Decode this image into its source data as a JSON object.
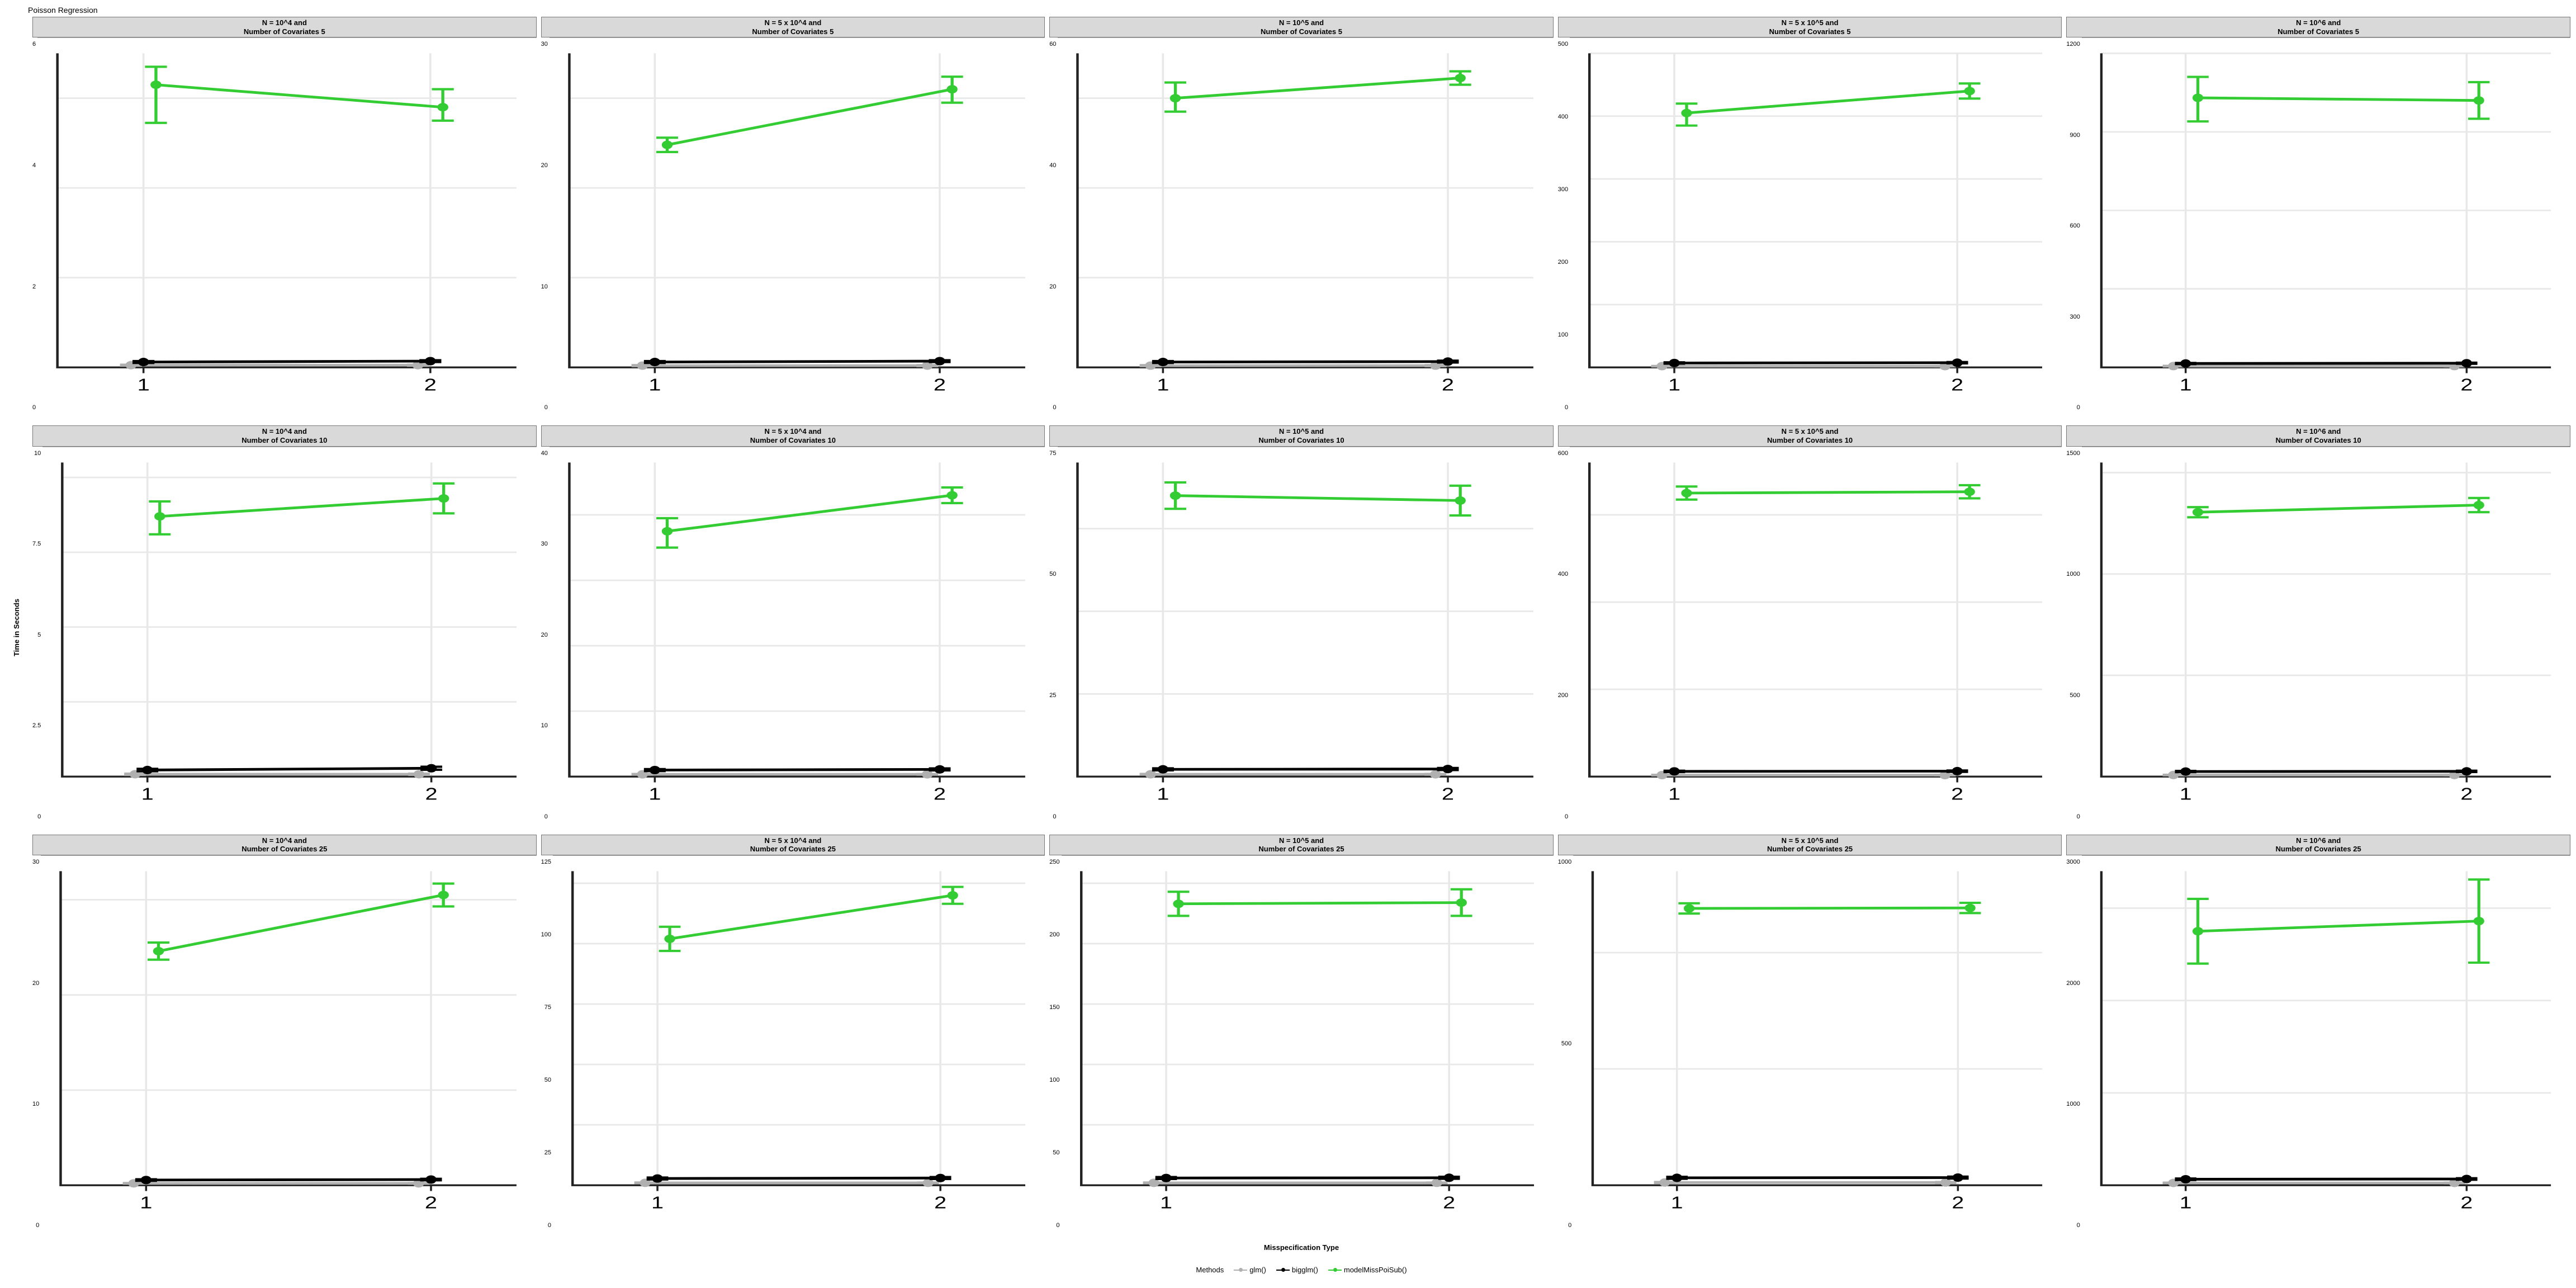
{
  "title": "Poisson Regression",
  "ylabel": "Time in Seconds",
  "xlabel": "Misspecification Type",
  "legend_label": "Methods",
  "legend_items": [
    {
      "name": "glm()",
      "color": "#b0b0b0"
    },
    {
      "name": "bigglm()",
      "color": "#000000"
    },
    {
      "name": "modelMissPoiSub()",
      "color": "#33cc33"
    }
  ],
  "colors": {
    "glm": "#b0b0b0",
    "bigglm": "#000000",
    "model": "#33cc33",
    "panel_bg": "#ffffff",
    "grid": "#e8e8e8",
    "axis": "#222222"
  },
  "x_ticks": [
    "1",
    "2"
  ],
  "panels": [
    [
      {
        "strip": "N = 10^4 and\nNumber of Covariates 5",
        "ylim": [
          0,
          7
        ],
        "ytick_step": 2,
        "glm": [
          [
            1,
            0.05,
            0.01,
            0.01
          ],
          [
            2,
            0.05,
            0.01,
            0.01
          ]
        ],
        "bigglm": [
          [
            1,
            0.12,
            0.02,
            0.02
          ],
          [
            2,
            0.14,
            0.02,
            0.02
          ]
        ],
        "model": [
          [
            1,
            6.3,
            0.85,
            0.4
          ],
          [
            2,
            5.8,
            0.3,
            0.4
          ]
        ]
      },
      {
        "strip": "N = 5 x 10^4 and\nNumber of Covariates 5",
        "ylim": [
          0,
          35
        ],
        "ytick_step": 10,
        "glm": [
          [
            1,
            0.2,
            0.05,
            0.05
          ],
          [
            2,
            0.2,
            0.05,
            0.05
          ]
        ],
        "bigglm": [
          [
            1,
            0.6,
            0.1,
            0.1
          ],
          [
            2,
            0.7,
            0.1,
            0.1
          ]
        ],
        "model": [
          [
            1,
            24.8,
            0.8,
            0.8
          ],
          [
            2,
            31,
            1.5,
            1.4
          ]
        ]
      },
      {
        "strip": "N = 10^5 and\nNumber of Covariates 5",
        "ylim": [
          0,
          70
        ],
        "ytick_step": 20,
        "glm": [
          [
            1,
            0.4,
            0.1,
            0.1
          ],
          [
            2,
            0.4,
            0.1,
            0.1
          ]
        ],
        "bigglm": [
          [
            1,
            1.2,
            0.2,
            0.2
          ],
          [
            2,
            1.3,
            0.2,
            0.2
          ]
        ],
        "model": [
          [
            1,
            60,
            3,
            3.5
          ],
          [
            2,
            64.5,
            1.5,
            1.5
          ]
        ]
      },
      {
        "strip": "N = 5 x 10^5 and\nNumber of Covariates 5",
        "ylim": [
          0,
          500
        ],
        "ytick_step": 100,
        "glm": [
          [
            1,
            2,
            0.3,
            0.3
          ],
          [
            2,
            2,
            0.3,
            0.3
          ]
        ],
        "bigglm": [
          [
            1,
            7,
            1,
            1
          ],
          [
            2,
            7.5,
            1,
            1
          ]
        ],
        "model": [
          [
            1,
            405,
            20,
            15
          ],
          [
            2,
            440,
            12,
            12
          ]
        ]
      },
      {
        "strip": "N = 10^6 and\nNumber of Covariates 5",
        "ylim": [
          0,
          1200
        ],
        "ytick_step": 300,
        "glm": [
          [
            1,
            5,
            1,
            1
          ],
          [
            2,
            5,
            1,
            1
          ]
        ],
        "bigglm": [
          [
            1,
            15,
            2,
            2
          ],
          [
            2,
            16,
            2,
            2
          ]
        ],
        "model": [
          [
            1,
            1030,
            90,
            80
          ],
          [
            2,
            1020,
            70,
            70
          ]
        ]
      }
    ],
    [
      {
        "strip": "N = 10^4 and\nNumber of Covariates 10",
        "ylim": [
          0,
          10.5
        ],
        "ytick_step": 2.5,
        "glm": [
          [
            1,
            0.08,
            0.02,
            0.02
          ],
          [
            2,
            0.08,
            0.02,
            0.02
          ]
        ],
        "bigglm": [
          [
            1,
            0.22,
            0.04,
            0.04
          ],
          [
            2,
            0.28,
            0.05,
            0.05
          ]
        ],
        "model": [
          [
            1,
            8.7,
            0.6,
            0.5
          ],
          [
            2,
            9.3,
            0.5,
            0.5
          ]
        ]
      },
      {
        "strip": "N = 5 x 10^4 and\nNumber of Covariates 10",
        "ylim": [
          0,
          48
        ],
        "ytick_step": 10,
        "glm": [
          [
            1,
            0.35,
            0.05,
            0.05
          ],
          [
            2,
            0.35,
            0.05,
            0.05
          ]
        ],
        "bigglm": [
          [
            1,
            1,
            0.15,
            0.15
          ],
          [
            2,
            1.1,
            0.15,
            0.15
          ]
        ],
        "model": [
          [
            1,
            37.5,
            2.5,
            2
          ],
          [
            2,
            43,
            1.2,
            1.2
          ]
        ]
      },
      {
        "strip": "N = 10^5 and\nNumber of Covariates 10",
        "ylim": [
          0,
          95
        ],
        "ytick_step": 25,
        "glm": [
          [
            1,
            0.7,
            0.1,
            0.1
          ],
          [
            2,
            0.7,
            0.1,
            0.1
          ]
        ],
        "bigglm": [
          [
            1,
            2.2,
            0.3,
            0.3
          ],
          [
            2,
            2.3,
            0.3,
            0.3
          ]
        ],
        "model": [
          [
            1,
            85,
            4,
            4
          ],
          [
            2,
            83.5,
            4.5,
            4.5
          ]
        ]
      },
      {
        "strip": "N = 5 x 10^5 and\nNumber of Covariates 10",
        "ylim": [
          0,
          720
        ],
        "ytick_step": 200,
        "glm": [
          [
            1,
            3.5,
            0.5,
            0.5
          ],
          [
            2,
            3.5,
            0.5,
            0.5
          ]
        ],
        "bigglm": [
          [
            1,
            12,
            1.5,
            1.5
          ],
          [
            2,
            12.5,
            1.5,
            1.5
          ]
        ],
        "model": [
          [
            1,
            650,
            15,
            15
          ],
          [
            2,
            653,
            15,
            15
          ]
        ]
      },
      {
        "strip": "N = 10^6 and\nNumber of Covariates 10",
        "ylim": [
          0,
          1550
        ],
        "ytick_step": 500,
        "glm": [
          [
            1,
            8,
            1,
            1
          ],
          [
            2,
            8,
            1,
            1
          ]
        ],
        "bigglm": [
          [
            1,
            25,
            3,
            3
          ],
          [
            2,
            26,
            3,
            3
          ]
        ],
        "model": [
          [
            1,
            1305,
            25,
            25
          ],
          [
            2,
            1340,
            35,
            35
          ]
        ]
      }
    ],
    [
      {
        "strip": "N = 10^4 and\nNumber of Covariates 25",
        "ylim": [
          0,
          33
        ],
        "ytick_step": 10,
        "glm": [
          [
            1,
            0.2,
            0.03,
            0.03
          ],
          [
            2,
            0.2,
            0.03,
            0.03
          ]
        ],
        "bigglm": [
          [
            1,
            0.55,
            0.08,
            0.08
          ],
          [
            2,
            0.6,
            0.08,
            0.08
          ]
        ],
        "model": [
          [
            1,
            24.6,
            0.9,
            0.9
          ],
          [
            2,
            30.5,
            1.2,
            1.2
          ]
        ]
      },
      {
        "strip": "N = 5 x 10^4 and\nNumber of Covariates 25",
        "ylim": [
          0,
          130
        ],
        "ytick_step": 25,
        "glm": [
          [
            1,
            1,
            0.15,
            0.15
          ],
          [
            2,
            1,
            0.15,
            0.15
          ]
        ],
        "bigglm": [
          [
            1,
            2.8,
            0.4,
            0.4
          ],
          [
            2,
            3,
            0.4,
            0.4
          ]
        ],
        "model": [
          [
            1,
            102,
            5,
            5
          ],
          [
            2,
            120,
            3.5,
            3.5
          ]
        ]
      },
      {
        "strip": "N = 10^5 and\nNumber of Covariates 25",
        "ylim": [
          0,
          260
        ],
        "ytick_step": 50,
        "glm": [
          [
            1,
            2,
            0.3,
            0.3
          ],
          [
            2,
            2,
            0.3,
            0.3
          ]
        ],
        "bigglm": [
          [
            1,
            6,
            0.8,
            0.8
          ],
          [
            2,
            6.2,
            0.8,
            0.8
          ]
        ],
        "model": [
          [
            1,
            233,
            10,
            10
          ],
          [
            2,
            234,
            11,
            11
          ]
        ]
      },
      {
        "strip": "N = 5 x 10^5 and\nNumber of Covariates 25",
        "ylim": [
          0,
          1350
        ],
        "ytick_step": 500,
        "glm": [
          [
            1,
            12,
            2,
            2
          ],
          [
            2,
            12,
            2,
            2
          ]
        ],
        "bigglm": [
          [
            1,
            32,
            4,
            4
          ],
          [
            2,
            33,
            4,
            4
          ]
        ],
        "model": [
          [
            1,
            1190,
            22,
            22
          ],
          [
            2,
            1192,
            22,
            22
          ]
        ]
      },
      {
        "strip": "N = 10^6 and\nNumber of Covariates 25",
        "ylim": [
          0,
          3400
        ],
        "ytick_step": 1000,
        "glm": [
          [
            1,
            25,
            3,
            3
          ],
          [
            2,
            25,
            3,
            3
          ]
        ],
        "bigglm": [
          [
            1,
            65,
            8,
            8
          ],
          [
            2,
            68,
            8,
            8
          ]
        ],
        "model": [
          [
            1,
            2750,
            350,
            350
          ],
          [
            2,
            2860,
            450,
            450
          ]
        ]
      }
    ]
  ]
}
